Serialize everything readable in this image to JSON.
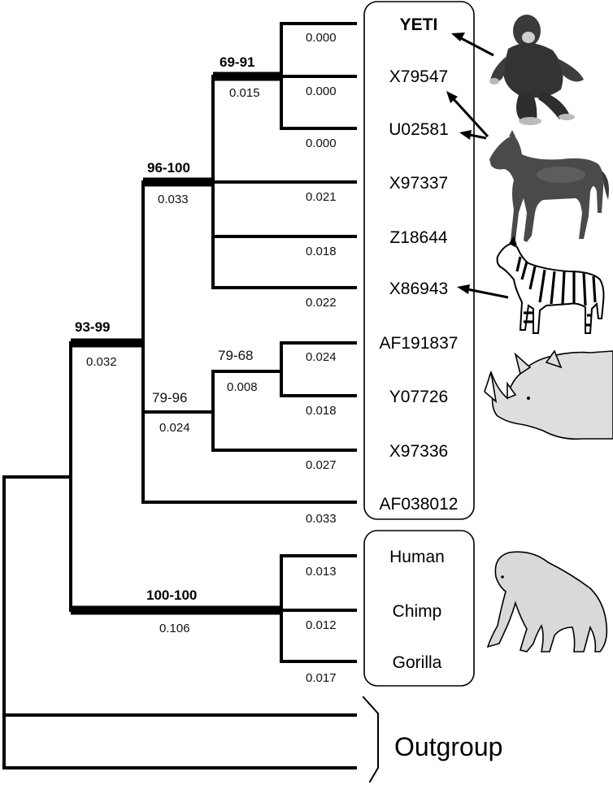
{
  "taxa": {
    "yeti": "YETI",
    "x79547": "X79547",
    "u02581": "U02581",
    "x97337": "X97337",
    "z18644": "Z18644",
    "x86943": "X86943",
    "af191837": "AF191837",
    "y07726": "Y07726",
    "x97336": "X97336",
    "af038012": "AF038012",
    "human": "Human",
    "chimp": "Chimp",
    "gorilla": "Gorilla"
  },
  "outgroup_label": "Outgroup",
  "branch_lengths": {
    "yeti": "0.000",
    "x79547": "0.000",
    "u02581": "0.000",
    "x97337": "0.021",
    "z18644": "0.018",
    "x86943": "0.022",
    "af191837": "0.024",
    "y07726": "0.018",
    "x97336": "0.027",
    "af038012": "0.033",
    "human": "0.013",
    "chimp": "0.012",
    "gorilla": "0.017",
    "node_69_91": "0.015",
    "node_96_100": "0.033",
    "node_93_99": "0.032",
    "node_79_68": "0.008",
    "node_79_96": "0.024",
    "node_100_100": "0.106"
  },
  "support_values": {
    "node_69_91": "69-91",
    "node_96_100": "96-100",
    "node_93_99": "93-99",
    "node_79_68": "79-68",
    "node_79_96": "79-96",
    "node_100_100": "100-100"
  },
  "illustrations": [
    "yeti-figure",
    "horse-figure",
    "zebra-figure",
    "rhinoceros-figure",
    "ape-figure"
  ]
}
